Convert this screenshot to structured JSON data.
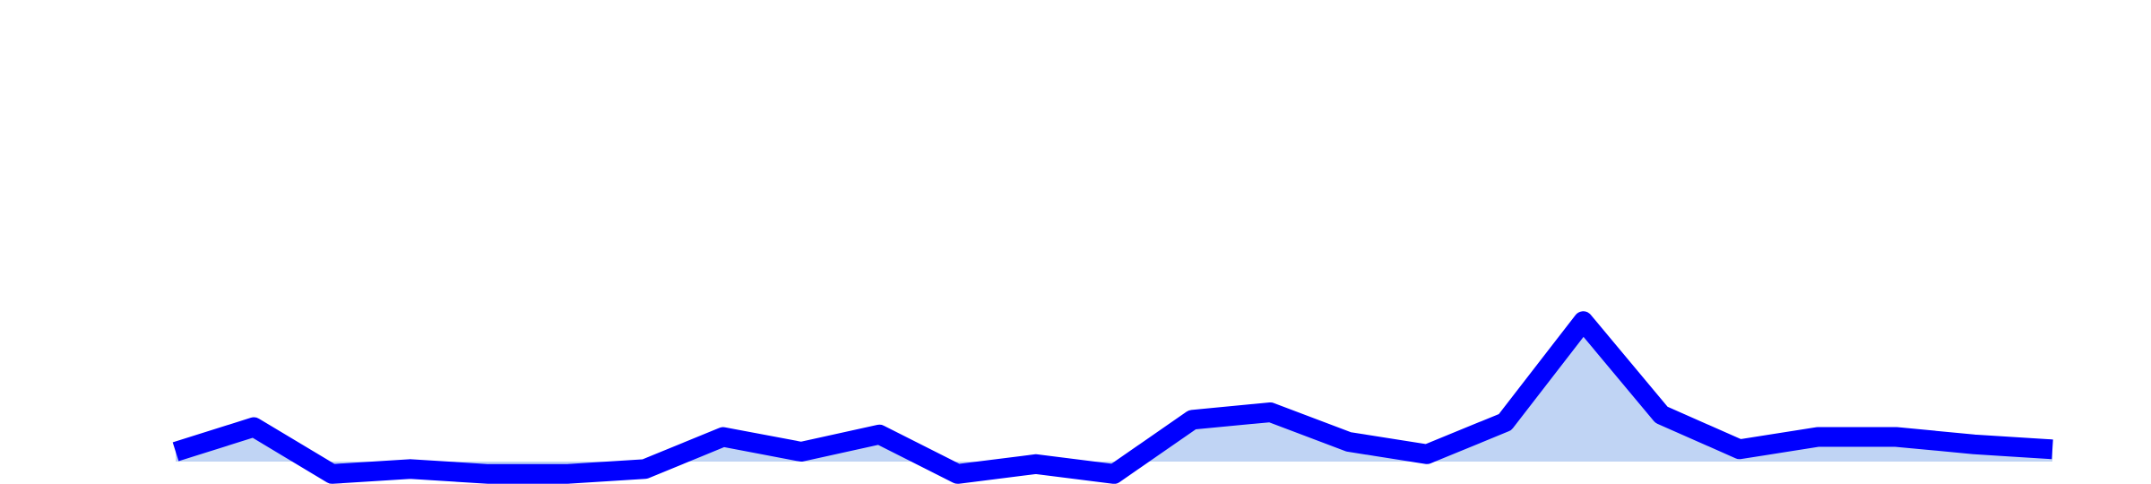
{
  "chart_data": {
    "type": "area",
    "x": [
      1,
      2,
      3,
      4,
      5,
      6,
      7,
      8,
      9,
      10,
      11,
      12,
      13,
      14,
      15,
      16,
      17,
      18,
      19,
      20,
      21,
      22,
      23,
      24,
      25
    ],
    "values": [
      0.4,
      1.4,
      -0.5,
      -0.3,
      -0.5,
      -0.5,
      -0.3,
      1.0,
      0.4,
      1.1,
      -0.5,
      -0.1,
      -0.5,
      1.7,
      2.0,
      0.8,
      0.3,
      1.6,
      5.7,
      1.9,
      0.5,
      1.0,
      1.0,
      0.7,
      0.5
    ],
    "ylim": [
      -1,
      18
    ],
    "grid": false,
    "line_color": "#0000ff",
    "fill_color": "#c0d4f4",
    "title": "",
    "xlabel": "",
    "ylabel": ""
  }
}
